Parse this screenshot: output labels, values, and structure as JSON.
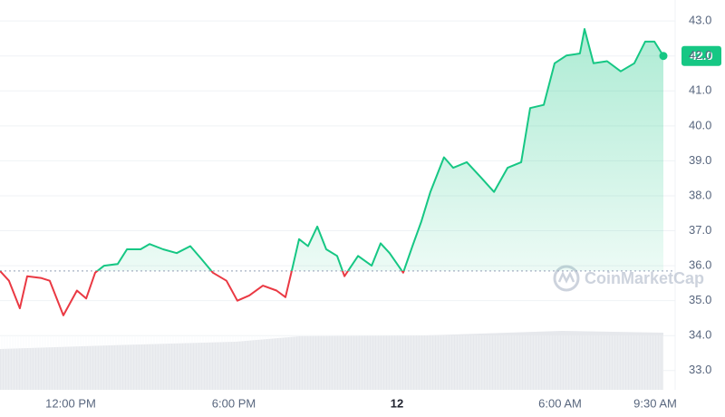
{
  "chart_data": {
    "type": "line",
    "x": [
      -2.6,
      -2.27,
      -1.87,
      -1.6,
      -1.1,
      -0.77,
      -0.27,
      0.23,
      0.57,
      0.9,
      1.23,
      1.73,
      2.07,
      2.57,
      2.9,
      3.4,
      3.9,
      4.4,
      4.8,
      5.23,
      5.73,
      6.13,
      6.57,
      7.07,
      7.57,
      7.9,
      8.13,
      8.4,
      8.73,
      9.07,
      9.4,
      9.8,
      10.07,
      10.57,
      11.07,
      11.4,
      11.73,
      12.23,
      12.57,
      12.9,
      13.23,
      13.73,
      14.07,
      14.57,
      15.07,
      15.57,
      16.07,
      16.57,
      16.9,
      17.4,
      17.8,
      18.23,
      18.73,
      18.9,
      19.23,
      19.73,
      20.23,
      20.73,
      21.13,
      21.47,
      21.8
    ],
    "series": [
      {
        "up_color": "#16c784",
        "down_color": "#ea3943",
        "values": [
          35.85,
          35.57,
          34.78,
          35.7,
          35.65,
          35.57,
          34.58,
          35.29,
          35.06,
          35.8,
          36.0,
          36.05,
          36.47,
          36.47,
          36.62,
          36.47,
          36.36,
          36.56,
          36.2,
          35.8,
          35.57,
          35.0,
          35.15,
          35.43,
          35.29,
          35.1,
          35.85,
          36.76,
          36.56,
          37.12,
          36.47,
          36.28,
          35.7,
          36.28,
          36.0,
          36.64,
          36.36,
          35.8,
          36.56,
          37.27,
          38.11,
          39.1,
          38.8,
          38.96,
          38.54,
          38.11,
          38.8,
          38.96,
          40.51,
          40.6,
          41.79,
          42.01,
          42.07,
          42.77,
          41.79,
          41.85,
          41.56,
          41.79,
          42.41,
          42.41,
          42.0
        ]
      }
    ],
    "baseline": 35.85,
    "last_label": "42.0",
    "watermark": "CoinMarketCap",
    "xlim": [
      -2.6,
      22.2
    ],
    "ylim": [
      32.45,
      43.6
    ],
    "xticks": [
      {
        "value": 0,
        "label": "12:00 PM"
      },
      {
        "value": 6,
        "label": "6:00 PM"
      },
      {
        "value": 12,
        "label": "12"
      },
      {
        "value": 18,
        "label": "6:00 AM"
      },
      {
        "value": 21.5,
        "label": "9:30 AM"
      }
    ],
    "yticks": [
      {
        "value": 33,
        "label": "33.0"
      },
      {
        "value": 34,
        "label": "34.0"
      },
      {
        "value": 35,
        "label": "35.0"
      },
      {
        "value": 36,
        "label": "36.0"
      },
      {
        "value": 37,
        "label": "37.0"
      },
      {
        "value": 38,
        "label": "38.0"
      },
      {
        "value": 39,
        "label": "39.0"
      },
      {
        "value": 40,
        "label": "40.0"
      },
      {
        "value": 41,
        "label": "41.0"
      },
      {
        "value": 42,
        "label": "42.0"
      },
      {
        "value": 43,
        "label": "43.0"
      }
    ],
    "grid": true
  }
}
